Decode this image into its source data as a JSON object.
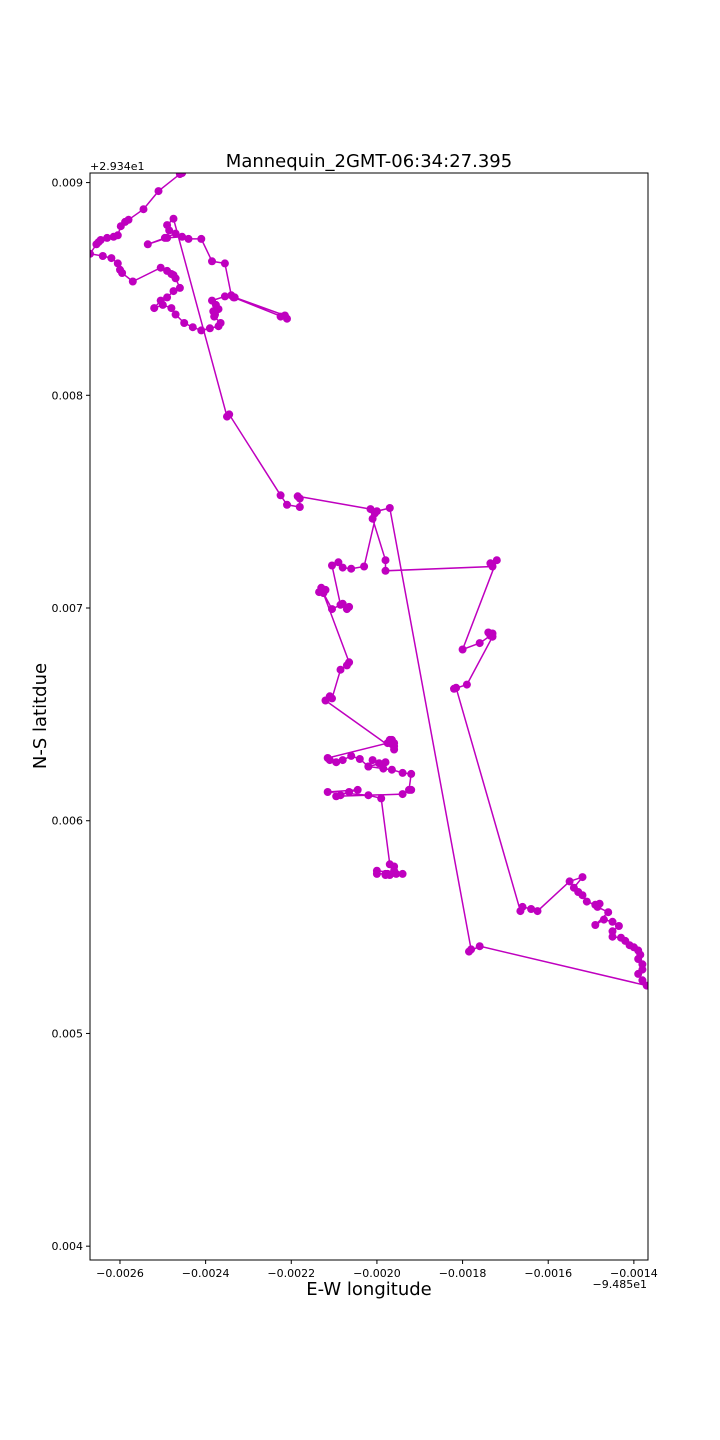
{
  "chart_data": {
    "type": "line",
    "title": "Mannequin_2GMT-06:34:27.395",
    "xlabel": "E-W longitude",
    "ylabel": "N-S latitdue",
    "x_offset_label": "−9.485e1",
    "y_offset_label": "+2.934e1",
    "x_offset": -94.85,
    "y_offset": 29.34,
    "xlim": [
      -0.00267,
      -0.001367
    ],
    "ylim": [
      0.003935,
      0.009045
    ],
    "xticks": [
      -0.0026,
      -0.0024,
      -0.0022,
      -0.002,
      -0.0018,
      -0.0016,
      -0.0014
    ],
    "xtick_labels": [
      "−0.0026",
      "−0.0024",
      "−0.0022",
      "−0.0020",
      "−0.0018",
      "−0.0016",
      "−0.0014"
    ],
    "yticks": [
      0.004,
      0.005,
      0.006,
      0.007,
      0.008,
      0.009
    ],
    "ytick_labels": [
      "0.004",
      "0.005",
      "0.006",
      "0.007",
      "0.008",
      "0.009"
    ],
    "grid": false,
    "marker": "o",
    "color": "#bf00bf",
    "series": [
      {
        "x": [
          -0.002455,
          -0.00246,
          -0.00251,
          -0.002545,
          -0.00258,
          -0.002588,
          -0.002598,
          -0.002605,
          -0.002615,
          -0.00263,
          -0.002645,
          -0.00265,
          -0.002655,
          -0.00267,
          -0.00264,
          -0.00262,
          -0.002605,
          -0.0026,
          -0.002595,
          -0.00257,
          -0.002505,
          -0.00249,
          -0.00248,
          -0.002475,
          -0.00247,
          -0.00246,
          -0.002475,
          -0.00249,
          -0.002505,
          -0.00252,
          -0.0025,
          -0.00248,
          -0.00247,
          -0.00245,
          -0.00243,
          -0.00241,
          -0.00239,
          -0.00237,
          -0.002365,
          -0.00238,
          -0.002378,
          -0.002382,
          -0.00237,
          -0.002376,
          -0.002385,
          -0.002355,
          -0.002332,
          -0.002215,
          -0.002225,
          -0.00221,
          -0.002335,
          -0.00234,
          -0.002355,
          -0.002385,
          -0.00241,
          -0.00244,
          -0.002455,
          -0.00249,
          -0.002535,
          -0.002495,
          -0.00247,
          -0.002485,
          -0.00249,
          -0.002475,
          -0.00235,
          -0.002345,
          -0.002225,
          -0.00221,
          -0.00218,
          -0.00218,
          -0.002185,
          -0.002015,
          -0.002005,
          -0.00201,
          -0.00198,
          -0.00198,
          -0.00173,
          -0.001735,
          -0.00172,
          -0.0018,
          -0.00176,
          -0.001735,
          -0.00173,
          -0.00174,
          -0.00173,
          -0.00179,
          -0.00182,
          -0.001815,
          -0.001665,
          -0.00166,
          -0.00164,
          -0.001625,
          -0.00155,
          -0.00152,
          -0.00154,
          -0.00153,
          -0.00152,
          -0.00151,
          -0.00149,
          -0.00148,
          -0.001485,
          -0.00146,
          -0.00149,
          -0.00147,
          -0.00145,
          -0.001435,
          -0.00145,
          -0.00145,
          -0.00143,
          -0.00142,
          -0.00141,
          -0.0014,
          -0.00139,
          -0.001385,
          -0.00139,
          -0.00138,
          -0.00138,
          -0.00139,
          -0.00138,
          -0.00137,
          -0.00176,
          -0.001785,
          -0.00178,
          -0.00197,
          -0.002,
          -0.00203,
          -0.00206,
          -0.00208,
          -0.00209,
          -0.002105,
          -0.002085,
          -0.00207,
          -0.002065,
          -0.00208,
          -0.002105,
          -0.002125,
          -0.00212,
          -0.002135,
          -0.00213,
          -0.002065,
          -0.00207,
          -0.002085,
          -0.002105,
          -0.00211,
          -0.00212,
          -0.00196,
          -0.00196,
          -0.00197,
          -0.00196,
          -0.001965,
          -0.00197,
          -0.001975,
          -0.001965,
          -0.002115,
          -0.00211,
          -0.002095,
          -0.00208,
          -0.00206,
          -0.00204,
          -0.00202,
          -0.00201,
          -0.001995,
          -0.00198,
          -0.00202,
          -0.001985,
          -0.001965,
          -0.00194,
          -0.00192,
          -0.001925,
          -0.00192,
          -0.00194,
          -0.002095,
          -0.002085,
          -0.002065,
          -0.002045,
          -0.002115,
          -0.00202,
          -0.00199,
          -0.00197,
          -0.00196,
          -0.00196,
          -0.00198,
          -0.00198,
          -0.00197,
          -0.00196,
          -0.002,
          -0.002,
          -0.001975,
          -0.001955,
          -0.00194
        ],
        "y": [
          0.009045,
          0.00904,
          0.00896,
          0.008875,
          0.008825,
          0.008815,
          0.008795,
          0.008752,
          0.008745,
          0.00874,
          0.00873,
          0.00872,
          0.00871,
          0.008665,
          0.008655,
          0.008645,
          0.00862,
          0.00859,
          0.008575,
          0.008535,
          0.0086,
          0.008585,
          0.00857,
          0.008565,
          0.00855,
          0.008505,
          0.00849,
          0.00846,
          0.008445,
          0.00841,
          0.008425,
          0.00841,
          0.00838,
          0.00834,
          0.00832,
          0.008305,
          0.008315,
          0.008325,
          0.00834,
          0.00837,
          0.00838,
          0.008395,
          0.008405,
          0.008425,
          0.008445,
          0.008465,
          0.00846,
          0.008375,
          0.00837,
          0.00836,
          0.00846,
          0.00847,
          0.00862,
          0.00863,
          0.008735,
          0.008735,
          0.008745,
          0.00874,
          0.00871,
          0.00874,
          0.00876,
          0.008775,
          0.0088,
          0.00883,
          0.0079,
          0.00791,
          0.00753,
          0.007485,
          0.007475,
          0.007515,
          0.007525,
          0.007465,
          0.007445,
          0.00742,
          0.007225,
          0.007175,
          0.007195,
          0.00721,
          0.007225,
          0.006805,
          0.006835,
          0.00687,
          0.00688,
          0.006885,
          0.006865,
          0.00664,
          0.00662,
          0.006625,
          0.005575,
          0.005595,
          0.005585,
          0.005575,
          0.005715,
          0.005735,
          0.005685,
          0.005665,
          0.00565,
          0.00562,
          0.005605,
          0.00561,
          0.005595,
          0.00557,
          0.00551,
          0.005535,
          0.005525,
          0.005505,
          0.00548,
          0.005455,
          0.00545,
          0.005435,
          0.005415,
          0.005405,
          0.00539,
          0.00537,
          0.00535,
          0.005325,
          0.0053,
          0.00528,
          0.00525,
          0.005225,
          0.00541,
          0.005385,
          0.005395,
          0.00747,
          0.007455,
          0.007195,
          0.007185,
          0.00719,
          0.007215,
          0.0072,
          0.007015,
          0.006995,
          0.007005,
          0.00702,
          0.006995,
          0.00707,
          0.007085,
          0.007075,
          0.007095,
          0.006745,
          0.00673,
          0.00671,
          0.006575,
          0.006585,
          0.006565,
          0.006335,
          0.00635,
          0.006375,
          0.006365,
          0.00638,
          0.00638,
          0.006365,
          0.00637,
          0.006295,
          0.006285,
          0.006275,
          0.006285,
          0.006305,
          0.00629,
          0.006255,
          0.006285,
          0.00627,
          0.006275,
          0.006255,
          0.006245,
          0.00624,
          0.006225,
          0.00622,
          0.006145,
          0.006145,
          0.006125,
          0.006115,
          0.00612,
          0.006135,
          0.006145,
          0.006135,
          0.00612,
          0.006105,
          0.005795,
          0.005785,
          0.005765,
          0.00575,
          0.005745,
          0.005745,
          0.005755,
          0.005765,
          0.00575,
          0.00575,
          0.00575,
          0.00575
        ]
      }
    ]
  }
}
